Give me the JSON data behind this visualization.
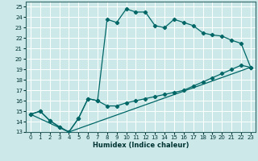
{
  "background_color": "#cce8e8",
  "line_color": "#006666",
  "grid_color": "#ffffff",
  "xlabel": "Humidex (Indice chaleur)",
  "xlim": [
    -0.5,
    23.5
  ],
  "ylim": [
    13,
    25.5
  ],
  "xticks": [
    0,
    1,
    2,
    3,
    4,
    5,
    6,
    7,
    8,
    9,
    10,
    11,
    12,
    13,
    14,
    15,
    16,
    17,
    18,
    19,
    20,
    21,
    22,
    23
  ],
  "yticks": [
    13,
    14,
    15,
    16,
    17,
    18,
    19,
    20,
    21,
    22,
    23,
    24,
    25
  ],
  "line1_x": [
    0,
    1,
    2,
    3,
    4,
    5,
    6,
    7,
    8,
    9,
    10,
    11,
    12,
    13,
    14,
    15,
    16,
    17,
    18,
    19,
    20,
    21,
    22,
    23
  ],
  "line1_y": [
    14.7,
    15.0,
    14.1,
    13.5,
    13.0,
    14.3,
    16.2,
    16.0,
    23.8,
    23.5,
    24.8,
    24.5,
    24.5,
    23.2,
    23.0,
    23.8,
    23.5,
    23.2,
    22.5,
    22.3,
    22.2,
    21.8,
    21.5,
    19.2
  ],
  "line2_x": [
    0,
    1,
    2,
    3,
    4,
    5,
    6,
    7,
    8,
    9,
    10,
    11,
    12,
    13,
    14,
    15,
    16,
    17,
    18,
    19,
    20,
    21,
    22,
    23
  ],
  "line2_y": [
    14.7,
    15.0,
    14.1,
    13.5,
    13.0,
    14.3,
    16.2,
    16.0,
    15.5,
    15.5,
    15.8,
    16.0,
    16.2,
    16.4,
    16.6,
    16.8,
    17.0,
    17.4,
    17.8,
    18.2,
    18.6,
    19.0,
    19.4,
    19.2
  ],
  "line3_x": [
    0,
    4,
    23
  ],
  "line3_y": [
    14.7,
    13.0,
    19.2
  ]
}
